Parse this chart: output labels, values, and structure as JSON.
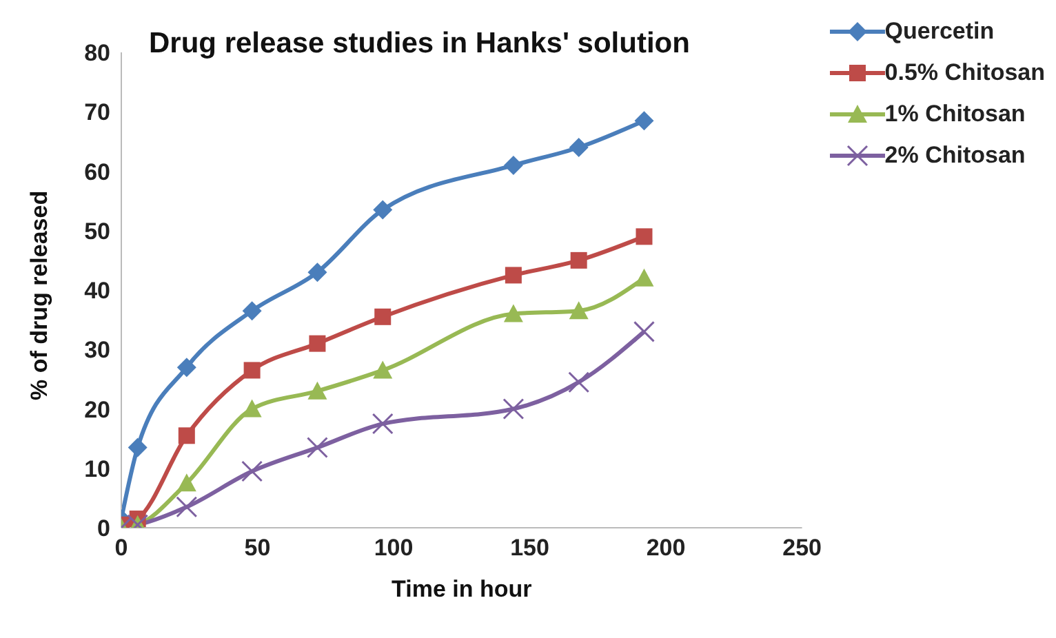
{
  "chart_data": {
    "type": "line",
    "title": "Drug release studies in Hanks' solution",
    "xlabel": "Time in hour",
    "ylabel": "% of drug released",
    "x": [
      0,
      6,
      24,
      48,
      72,
      96,
      144,
      168,
      192
    ],
    "series": [
      {
        "name": "Quercetin",
        "color": "#4a7ebb",
        "marker": "diamond",
        "values": [
          1.5,
          13.5,
          27,
          36.5,
          43,
          53.5,
          61,
          64,
          68.5
        ]
      },
      {
        "name": "0.5% Chitosan",
        "color": "#be4b48",
        "marker": "square",
        "values": [
          0.5,
          1.5,
          15.5,
          26.5,
          31,
          35.5,
          42.5,
          45,
          49
        ]
      },
      {
        "name": "1% Chitosan",
        "color": "#98b954",
        "marker": "triangle",
        "values": [
          0,
          0.5,
          7.5,
          20,
          23,
          26.5,
          36,
          36.5,
          42
        ]
      },
      {
        "name": "2% Chitosan",
        "color": "#7d60a0",
        "marker": "cross",
        "values": [
          0,
          0.5,
          3.5,
          9.5,
          13.5,
          17.5,
          20,
          24.5,
          33
        ]
      }
    ],
    "xlim": [
      0,
      250
    ],
    "xticks": [
      0,
      50,
      100,
      150,
      200,
      250
    ],
    "ylim": [
      0,
      80
    ],
    "yticks": [
      0,
      10,
      20,
      30,
      40,
      50,
      60,
      70,
      80
    ],
    "grid": false,
    "legend": "top right",
    "line_style": "solid"
  }
}
